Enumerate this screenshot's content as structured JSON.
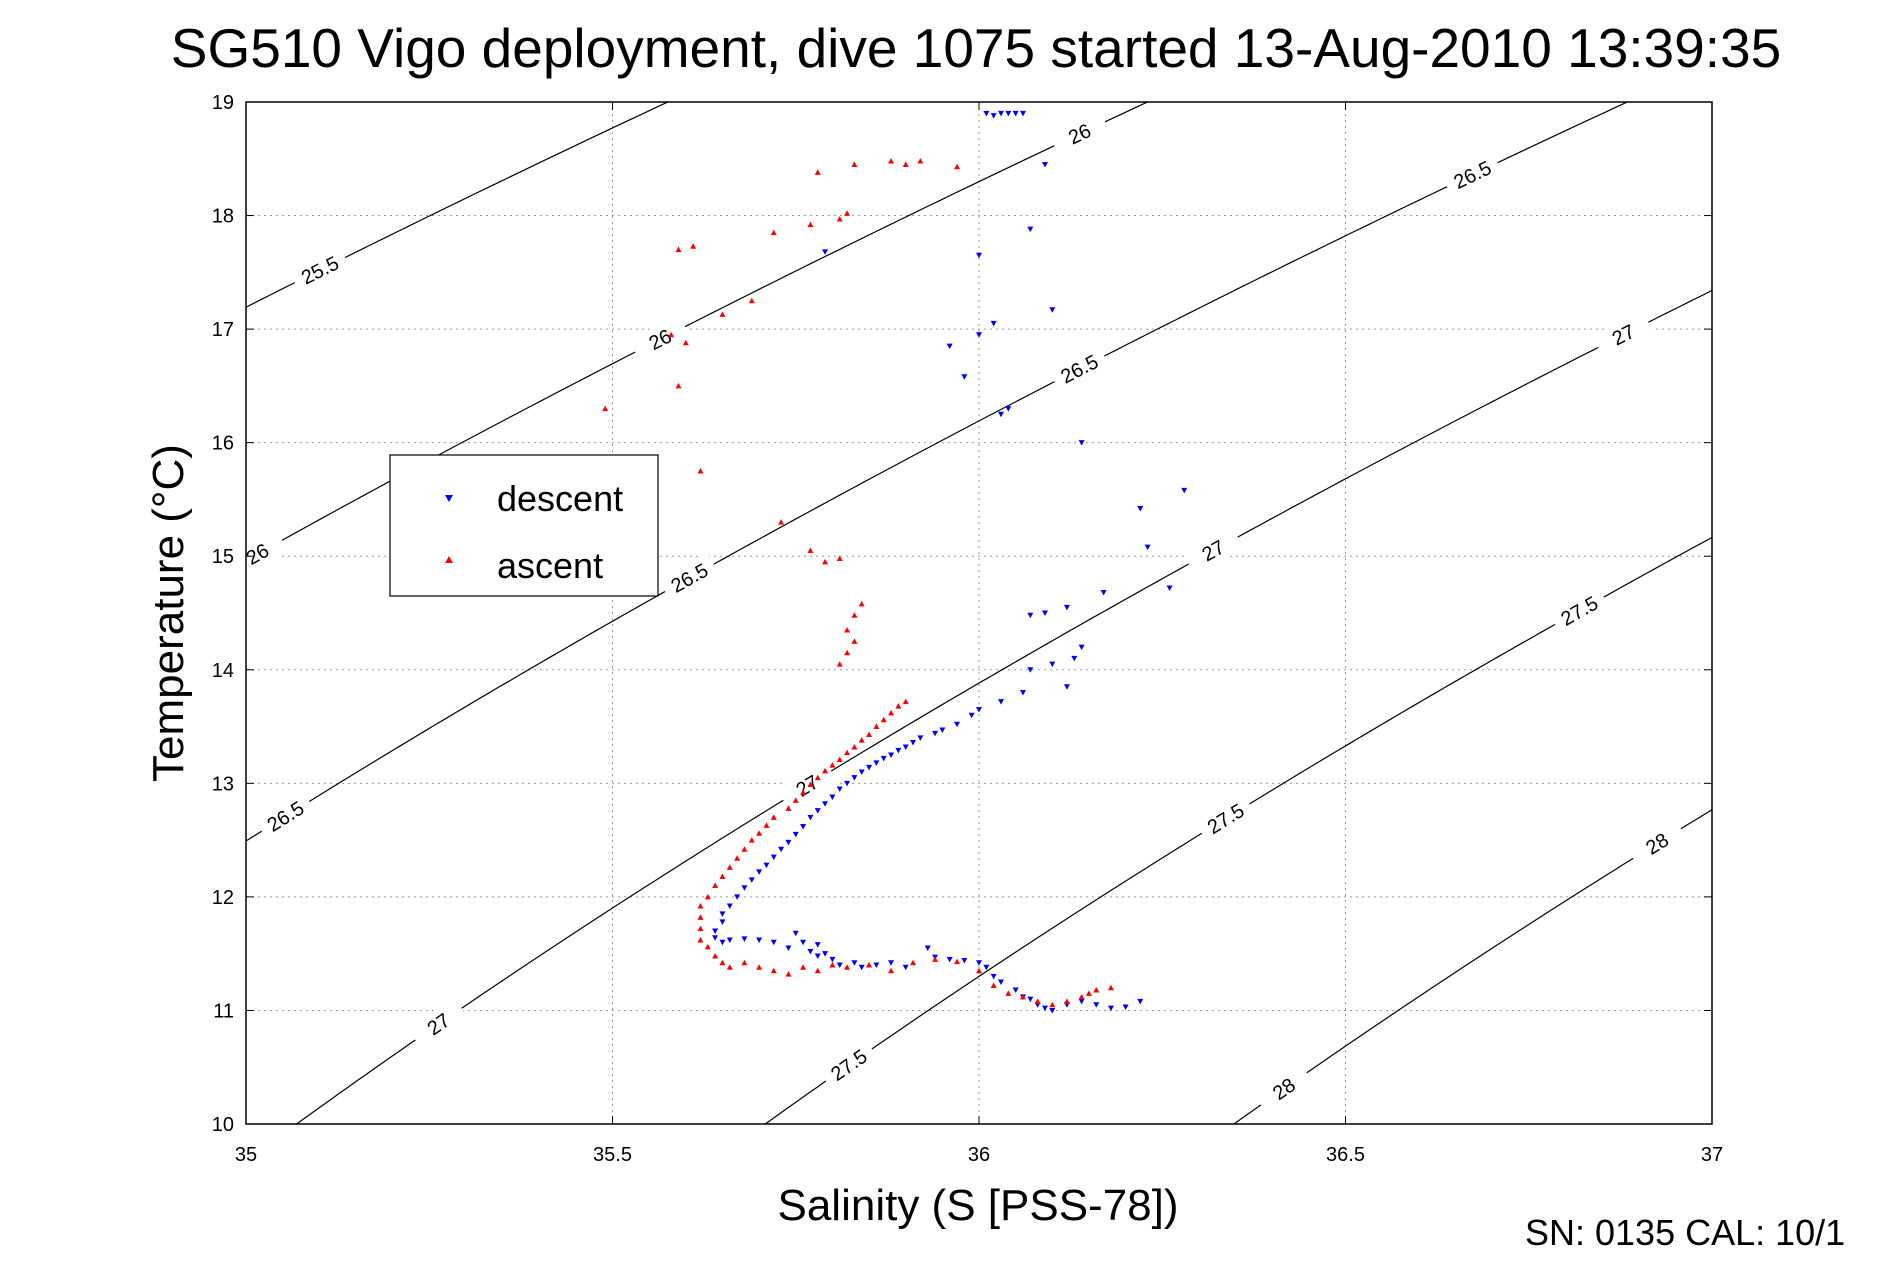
{
  "chart_data": {
    "type": "scatter",
    "title": "SG510 Vigo deployment, dive 1075 started 13-Aug-2010 13:39:35",
    "xlabel": "Salinity (S [PSS-78])",
    "ylabel": "Temperature (°C)",
    "xlim": [
      35,
      37
    ],
    "ylim": [
      10,
      19
    ],
    "xticks": [
      "35",
      "35.5",
      "36",
      "36.5",
      "37"
    ],
    "yticks": [
      "10",
      "11",
      "12",
      "13",
      "14",
      "15",
      "16",
      "17",
      "18",
      "19"
    ],
    "grid": true,
    "legend_position": "center-left",
    "footer": "SN: 0135  CAL: 10/1",
    "colors": {
      "descent": "#0000ff",
      "ascent": "#ff0000",
      "contour": "#000000"
    },
    "density_contours": [
      {
        "sigma": 25.5,
        "labels": [
          {
            "text": "25.5",
            "s": 35.16,
            "t": 17.52
          }
        ]
      },
      {
        "sigma": 26.0,
        "labels": [
          {
            "text": "26",
            "s": 35.04,
            "t": 15.02
          },
          {
            "text": "26",
            "s": 35.61,
            "t": 16.91
          },
          {
            "text": "26",
            "s": 36.19,
            "t": 18.72
          }
        ]
      },
      {
        "sigma": 26.5,
        "labels": [
          {
            "text": "26.5",
            "s": 35.09,
            "t": 12.71
          },
          {
            "text": "26.5",
            "s": 35.64,
            "t": 14.81
          },
          {
            "text": "26.5",
            "s": 36.21,
            "t": 16.65
          },
          {
            "text": "26.5",
            "s": 36.74,
            "t": 18.36
          }
        ]
      },
      {
        "sigma": 27.0,
        "labels": [
          {
            "text": "27",
            "s": 35.26,
            "t": 10.88
          },
          {
            "text": "27",
            "s": 35.8,
            "t": 12.98
          },
          {
            "text": "27",
            "s": 36.36,
            "t": 15.05
          },
          {
            "text": "27",
            "s": 36.9,
            "t": 16.95
          }
        ]
      },
      {
        "sigma": 27.5,
        "labels": [
          {
            "text": "27.5",
            "s": 35.84,
            "t": 10.52
          },
          {
            "text": "27.5",
            "s": 36.37,
            "t": 12.69
          },
          {
            "text": "27.5",
            "s": 36.91,
            "t": 14.52
          }
        ]
      },
      {
        "sigma": 28.0,
        "labels": [
          {
            "text": "28",
            "s": 36.42,
            "t": 10.31
          },
          {
            "text": "28",
            "s": 36.95,
            "t": 12.47
          }
        ]
      }
    ],
    "series": [
      {
        "name": "descent",
        "marker": "triangle-down",
        "points": [
          [
            36.01,
            18.9
          ],
          [
            36.02,
            18.88
          ],
          [
            36.03,
            18.9
          ],
          [
            36.04,
            18.9
          ],
          [
            36.05,
            18.9
          ],
          [
            36.06,
            18.9
          ],
          [
            36.09,
            18.45
          ],
          [
            36.07,
            17.88
          ],
          [
            35.79,
            17.68
          ],
          [
            36.0,
            17.65
          ],
          [
            36.1,
            17.17
          ],
          [
            36.02,
            17.05
          ],
          [
            36.0,
            16.95
          ],
          [
            35.96,
            16.85
          ],
          [
            35.98,
            16.58
          ],
          [
            36.04,
            16.3
          ],
          [
            36.03,
            16.25
          ],
          [
            36.14,
            16.0
          ],
          [
            36.28,
            15.58
          ],
          [
            36.22,
            15.42
          ],
          [
            36.23,
            15.08
          ],
          [
            36.26,
            14.72
          ],
          [
            36.17,
            14.68
          ],
          [
            36.12,
            14.55
          ],
          [
            36.09,
            14.5
          ],
          [
            36.07,
            14.48
          ],
          [
            36.14,
            14.2
          ],
          [
            36.1,
            14.05
          ],
          [
            36.13,
            14.1
          ],
          [
            36.07,
            14.0
          ],
          [
            36.12,
            13.85
          ],
          [
            36.06,
            13.8
          ],
          [
            36.03,
            13.72
          ],
          [
            36.0,
            13.65
          ],
          [
            35.99,
            13.6
          ],
          [
            35.97,
            13.52
          ],
          [
            35.95,
            13.47
          ],
          [
            35.94,
            13.44
          ],
          [
            35.92,
            13.4
          ],
          [
            35.91,
            13.36
          ],
          [
            35.9,
            13.32
          ],
          [
            35.89,
            13.29
          ],
          [
            35.88,
            13.25
          ],
          [
            35.87,
            13.22
          ],
          [
            35.86,
            13.18
          ],
          [
            35.85,
            13.14
          ],
          [
            35.84,
            13.1
          ],
          [
            35.83,
            13.05
          ],
          [
            35.82,
            13.0
          ],
          [
            35.81,
            12.95
          ],
          [
            35.8,
            12.88
          ],
          [
            35.79,
            12.82
          ],
          [
            35.78,
            12.76
          ],
          [
            35.77,
            12.7
          ],
          [
            35.76,
            12.62
          ],
          [
            35.75,
            12.55
          ],
          [
            35.74,
            12.48
          ],
          [
            35.73,
            12.42
          ],
          [
            35.72,
            12.35
          ],
          [
            35.71,
            12.28
          ],
          [
            35.7,
            12.22
          ],
          [
            35.69,
            12.15
          ],
          [
            35.68,
            12.08
          ],
          [
            35.67,
            12.0
          ],
          [
            35.66,
            11.92
          ],
          [
            35.65,
            11.85
          ],
          [
            35.65,
            11.78
          ],
          [
            35.64,
            11.7
          ],
          [
            35.64,
            11.64
          ],
          [
            35.65,
            11.6
          ],
          [
            35.66,
            11.62
          ],
          [
            35.68,
            11.63
          ],
          [
            35.7,
            11.62
          ],
          [
            35.72,
            11.6
          ],
          [
            35.74,
            11.55
          ],
          [
            35.76,
            11.6
          ],
          [
            35.77,
            11.52
          ],
          [
            35.78,
            11.48
          ],
          [
            35.79,
            11.5
          ],
          [
            35.8,
            11.45
          ],
          [
            35.81,
            11.4
          ],
          [
            35.83,
            11.42
          ],
          [
            35.84,
            11.38
          ],
          [
            35.86,
            11.4
          ],
          [
            35.88,
            11.42
          ],
          [
            35.9,
            11.38
          ],
          [
            35.93,
            11.55
          ],
          [
            35.94,
            11.47
          ],
          [
            35.96,
            11.45
          ],
          [
            35.98,
            11.44
          ],
          [
            36.0,
            11.42
          ],
          [
            36.01,
            11.38
          ],
          [
            36.02,
            11.3
          ],
          [
            36.03,
            11.25
          ],
          [
            36.05,
            11.18
          ],
          [
            36.06,
            11.12
          ],
          [
            36.07,
            11.1
          ],
          [
            36.08,
            11.05
          ],
          [
            36.09,
            11.02
          ],
          [
            36.1,
            11.0
          ],
          [
            36.12,
            11.05
          ],
          [
            36.14,
            11.08
          ],
          [
            36.16,
            11.05
          ],
          [
            36.18,
            11.02
          ],
          [
            36.2,
            11.03
          ],
          [
            36.22,
            11.08
          ],
          [
            35.75,
            11.68
          ],
          [
            35.78,
            11.58
          ]
        ]
      },
      {
        "name": "ascent",
        "marker": "triangle-up",
        "points": [
          [
            35.83,
            18.45
          ],
          [
            35.88,
            18.48
          ],
          [
            35.9,
            18.45
          ],
          [
            35.92,
            18.48
          ],
          [
            35.97,
            18.43
          ],
          [
            35.78,
            18.38
          ],
          [
            35.82,
            18.02
          ],
          [
            35.81,
            17.97
          ],
          [
            35.77,
            17.92
          ],
          [
            35.72,
            17.85
          ],
          [
            35.61,
            17.73
          ],
          [
            35.59,
            17.7
          ],
          [
            35.69,
            17.25
          ],
          [
            35.65,
            17.13
          ],
          [
            35.58,
            16.95
          ],
          [
            35.6,
            16.88
          ],
          [
            35.59,
            16.5
          ],
          [
            35.49,
            16.3
          ],
          [
            35.62,
            15.75
          ],
          [
            35.73,
            15.3
          ],
          [
            35.77,
            15.05
          ],
          [
            35.81,
            14.98
          ],
          [
            35.79,
            14.95
          ],
          [
            35.84,
            14.58
          ],
          [
            35.83,
            14.48
          ],
          [
            35.82,
            14.35
          ],
          [
            35.83,
            14.25
          ],
          [
            35.82,
            14.15
          ],
          [
            35.81,
            14.05
          ],
          [
            35.9,
            13.72
          ],
          [
            35.89,
            13.68
          ],
          [
            35.88,
            13.62
          ],
          [
            35.87,
            13.56
          ],
          [
            35.86,
            13.5
          ],
          [
            35.85,
            13.43
          ],
          [
            35.84,
            13.38
          ],
          [
            35.83,
            13.32
          ],
          [
            35.82,
            13.27
          ],
          [
            35.81,
            13.21
          ],
          [
            35.8,
            13.16
          ],
          [
            35.79,
            13.11
          ],
          [
            35.78,
            13.05
          ],
          [
            35.77,
            12.99
          ],
          [
            35.76,
            12.92
          ],
          [
            35.75,
            12.85
          ],
          [
            35.74,
            12.78
          ],
          [
            35.72,
            12.7
          ],
          [
            35.71,
            12.63
          ],
          [
            35.7,
            12.56
          ],
          [
            35.69,
            12.5
          ],
          [
            35.68,
            12.42
          ],
          [
            35.67,
            12.34
          ],
          [
            35.66,
            12.26
          ],
          [
            35.65,
            12.18
          ],
          [
            35.64,
            12.1
          ],
          [
            35.63,
            12.0
          ],
          [
            35.62,
            11.92
          ],
          [
            35.62,
            11.82
          ],
          [
            35.62,
            11.72
          ],
          [
            35.62,
            11.62
          ],
          [
            35.63,
            11.56
          ],
          [
            35.64,
            11.48
          ],
          [
            35.65,
            11.42
          ],
          [
            35.66,
            11.38
          ],
          [
            35.68,
            11.42
          ],
          [
            35.7,
            11.38
          ],
          [
            35.72,
            11.35
          ],
          [
            35.74,
            11.32
          ],
          [
            35.76,
            11.38
          ],
          [
            35.78,
            11.35
          ],
          [
            35.8,
            11.4
          ],
          [
            35.82,
            11.38
          ],
          [
            35.85,
            11.4
          ],
          [
            35.88,
            11.35
          ],
          [
            35.91,
            11.42
          ],
          [
            35.94,
            11.45
          ],
          [
            35.97,
            11.43
          ],
          [
            36.0,
            11.35
          ],
          [
            36.02,
            11.22
          ],
          [
            36.04,
            11.15
          ],
          [
            36.06,
            11.12
          ],
          [
            36.08,
            11.08
          ],
          [
            36.1,
            11.05
          ],
          [
            36.12,
            11.08
          ],
          [
            36.14,
            11.12
          ],
          [
            36.16,
            11.18
          ],
          [
            36.18,
            11.2
          ],
          [
            36.15,
            11.15
          ]
        ]
      }
    ],
    "legend": [
      {
        "label": "descent",
        "color": "#0000ff",
        "marker": "triangle-down"
      },
      {
        "label": "ascent",
        "color": "#ff0000",
        "marker": "triangle-up"
      }
    ]
  }
}
